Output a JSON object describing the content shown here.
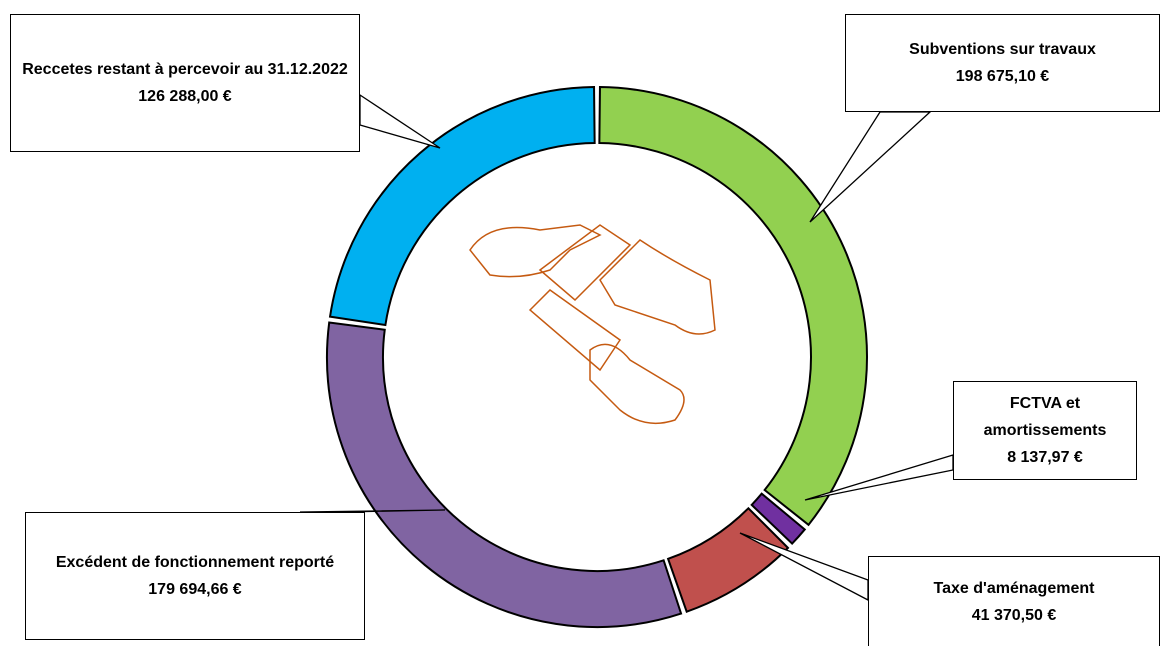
{
  "chart_data": {
    "type": "donut",
    "categories": [
      "Subventions sur travaux",
      "FCTVA et amortissements",
      "Taxe d'aménagement",
      "Excédent de fonctionnement reporté",
      "Reccetes restant à percevoir au 31.12.2022"
    ],
    "values": [
      198675.1,
      8137.97,
      41370.5,
      179694.66,
      126288.0
    ],
    "value_labels": [
      "198 675,10 €",
      "8 137,97 €",
      "41 370,50 €",
      "179 694,66 €",
      "126 288,00 €"
    ],
    "colors": [
      "#92d050",
      "#7030a0",
      "#c0504d",
      "#8064a2",
      "#00b0f0"
    ]
  }
}
